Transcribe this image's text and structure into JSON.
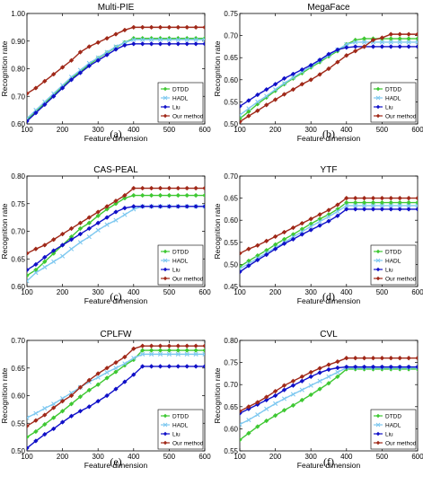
{
  "figure": {
    "captions": [
      "(a)",
      "(b)",
      "(c)",
      "(d)",
      "(e)",
      "(f)"
    ]
  },
  "colors": {
    "DTDD": "#3ec832",
    "HADL": "#7ec8f0",
    "Liu": "#1010c8",
    "Our method": "#a02818"
  },
  "chart_data": [
    {
      "type": "line",
      "title": "Multi-PIE",
      "xlabel": "Feature dimension",
      "ylabel": "Recognition rate",
      "xlim": [
        100,
        600
      ],
      "ylim": [
        0.6,
        1.0
      ],
      "xticks": [
        100,
        200,
        300,
        400,
        500,
        600
      ],
      "yticks": [
        0.6,
        0.7,
        0.8,
        0.9,
        1.0
      ],
      "ytick_labels": [
        "0.60",
        "0.70",
        "0.80",
        "0.90",
        "1.00"
      ],
      "grid": false,
      "legend": "bottom-right",
      "x": [
        100,
        125,
        150,
        175,
        200,
        225,
        250,
        275,
        300,
        325,
        350,
        375,
        400,
        425,
        450,
        475,
        500,
        525,
        550,
        575,
        600
      ],
      "series": [
        {
          "name": "DTDD",
          "values": [
            0.615,
            0.645,
            0.675,
            0.705,
            0.735,
            0.765,
            0.79,
            0.815,
            0.838,
            0.858,
            0.878,
            0.895,
            0.91,
            0.91,
            0.91,
            0.91,
            0.91,
            0.91,
            0.91,
            0.91,
            0.91
          ]
        },
        {
          "name": "HADL",
          "values": [
            0.62,
            0.65,
            0.68,
            0.71,
            0.74,
            0.77,
            0.795,
            0.82,
            0.84,
            0.86,
            0.88,
            0.895,
            0.905,
            0.905,
            0.905,
            0.905,
            0.905,
            0.905,
            0.905,
            0.905,
            0.905
          ]
        },
        {
          "name": "Liu",
          "values": [
            0.61,
            0.64,
            0.67,
            0.7,
            0.73,
            0.76,
            0.785,
            0.81,
            0.83,
            0.85,
            0.87,
            0.885,
            0.89,
            0.89,
            0.89,
            0.89,
            0.89,
            0.89,
            0.89,
            0.89,
            0.89
          ]
        },
        {
          "name": "Our method",
          "values": [
            0.71,
            0.73,
            0.755,
            0.78,
            0.805,
            0.83,
            0.86,
            0.88,
            0.895,
            0.91,
            0.925,
            0.94,
            0.95,
            0.95,
            0.95,
            0.95,
            0.95,
            0.95,
            0.95,
            0.95,
            0.95
          ]
        }
      ]
    },
    {
      "type": "line",
      "title": "MegaFace",
      "xlabel": "Feature dimension",
      "ylabel": "Recognition rate",
      "xlim": [
        100,
        600
      ],
      "ylim": [
        0.5,
        0.75
      ],
      "xticks": [
        100,
        200,
        300,
        400,
        500,
        600
      ],
      "yticks": [
        0.5,
        0.55,
        0.6,
        0.65,
        0.7,
        0.75
      ],
      "ytick_labels": [
        "0.50",
        "0.55",
        "0.60",
        "0.65",
        "0.70",
        "0.75"
      ],
      "grid": false,
      "legend": "bottom-right",
      "x": [
        100,
        125,
        150,
        175,
        200,
        225,
        250,
        275,
        300,
        325,
        350,
        375,
        400,
        425,
        450,
        475,
        500,
        525,
        550,
        575,
        600
      ],
      "series": [
        {
          "name": "DTDD",
          "values": [
            0.512,
            0.528,
            0.545,
            0.56,
            0.575,
            0.59,
            0.603,
            0.615,
            0.628,
            0.64,
            0.653,
            0.665,
            0.68,
            0.69,
            0.693,
            0.693,
            0.693,
            0.693,
            0.693,
            0.693,
            0.693
          ]
        },
        {
          "name": "HADL",
          "values": [
            0.52,
            0.535,
            0.55,
            0.563,
            0.578,
            0.592,
            0.605,
            0.618,
            0.63,
            0.643,
            0.655,
            0.668,
            0.68,
            0.685,
            0.685,
            0.685,
            0.685,
            0.685,
            0.685,
            0.685,
            0.685
          ]
        },
        {
          "name": "Liu",
          "values": [
            0.54,
            0.553,
            0.566,
            0.578,
            0.59,
            0.603,
            0.613,
            0.623,
            0.633,
            0.645,
            0.658,
            0.668,
            0.673,
            0.675,
            0.675,
            0.675,
            0.675,
            0.675,
            0.675,
            0.675,
            0.675
          ]
        },
        {
          "name": "Our method",
          "values": [
            0.505,
            0.518,
            0.53,
            0.543,
            0.555,
            0.567,
            0.578,
            0.59,
            0.6,
            0.612,
            0.625,
            0.64,
            0.655,
            0.665,
            0.675,
            0.69,
            0.695,
            0.703,
            0.703,
            0.703,
            0.703
          ]
        }
      ]
    },
    {
      "type": "line",
      "title": "CAS-PEAL",
      "xlabel": "Feature dimension",
      "ylabel": "Recognition rate",
      "xlim": [
        100,
        600
      ],
      "ylim": [
        0.6,
        0.8
      ],
      "xticks": [
        100,
        200,
        300,
        400,
        500,
        600
      ],
      "yticks": [
        0.6,
        0.65,
        0.7,
        0.75,
        0.8
      ],
      "ytick_labels": [
        "0.60",
        "0.65",
        "0.70",
        "0.75",
        "0.80"
      ],
      "grid": false,
      "legend": "bottom-right",
      "x": [
        100,
        125,
        150,
        175,
        200,
        225,
        250,
        275,
        300,
        325,
        350,
        375,
        400,
        425,
        450,
        475,
        500,
        525,
        550,
        575,
        600
      ],
      "series": [
        {
          "name": "DTDD",
          "values": [
            0.62,
            0.63,
            0.645,
            0.66,
            0.675,
            0.69,
            0.705,
            0.715,
            0.728,
            0.74,
            0.75,
            0.76,
            0.765,
            0.765,
            0.765,
            0.765,
            0.765,
            0.765,
            0.765,
            0.765,
            0.765
          ]
        },
        {
          "name": "HADL",
          "values": [
            0.61,
            0.625,
            0.635,
            0.645,
            0.655,
            0.668,
            0.68,
            0.69,
            0.702,
            0.712,
            0.72,
            0.73,
            0.74,
            0.745,
            0.745,
            0.745,
            0.745,
            0.745,
            0.745,
            0.745,
            0.745
          ]
        },
        {
          "name": "Liu",
          "values": [
            0.63,
            0.64,
            0.653,
            0.665,
            0.675,
            0.685,
            0.695,
            0.705,
            0.715,
            0.725,
            0.735,
            0.742,
            0.745,
            0.745,
            0.745,
            0.745,
            0.745,
            0.745,
            0.745,
            0.745,
            0.745
          ]
        },
        {
          "name": "Our method",
          "values": [
            0.66,
            0.668,
            0.675,
            0.685,
            0.695,
            0.705,
            0.715,
            0.725,
            0.735,
            0.745,
            0.755,
            0.765,
            0.778,
            0.778,
            0.778,
            0.778,
            0.778,
            0.778,
            0.778,
            0.778,
            0.778
          ]
        }
      ]
    },
    {
      "type": "line",
      "title": "YTF",
      "xlabel": "Feature dimension",
      "ylabel": "Recognition rate",
      "xlim": [
        100,
        600
      ],
      "ylim": [
        0.45,
        0.7
      ],
      "xticks": [
        100,
        200,
        300,
        400,
        500,
        600
      ],
      "yticks": [
        0.45,
        0.5,
        0.55,
        0.6,
        0.65,
        0.7
      ],
      "ytick_labels": [
        "0.45",
        "0.50",
        "0.55",
        "0.60",
        "0.65",
        "0.70"
      ],
      "grid": false,
      "legend": "bottom-right",
      "x": [
        100,
        125,
        150,
        175,
        200,
        225,
        250,
        275,
        300,
        325,
        350,
        375,
        400,
        425,
        450,
        475,
        500,
        525,
        550,
        575,
        600
      ],
      "series": [
        {
          "name": "DTDD",
          "values": [
            0.495,
            0.508,
            0.52,
            0.532,
            0.545,
            0.557,
            0.568,
            0.58,
            0.592,
            0.603,
            0.613,
            0.625,
            0.64,
            0.64,
            0.64,
            0.64,
            0.64,
            0.64,
            0.64,
            0.64,
            0.64
          ]
        },
        {
          "name": "HADL",
          "values": [
            0.49,
            0.502,
            0.514,
            0.526,
            0.538,
            0.55,
            0.562,
            0.574,
            0.586,
            0.597,
            0.608,
            0.62,
            0.633,
            0.633,
            0.633,
            0.633,
            0.633,
            0.633,
            0.633,
            0.633,
            0.633
          ]
        },
        {
          "name": "Liu",
          "values": [
            0.483,
            0.497,
            0.51,
            0.522,
            0.535,
            0.547,
            0.557,
            0.568,
            0.578,
            0.588,
            0.598,
            0.61,
            0.625,
            0.625,
            0.625,
            0.625,
            0.625,
            0.625,
            0.625,
            0.625,
            0.625
          ]
        },
        {
          "name": "Our method",
          "values": [
            0.525,
            0.535,
            0.543,
            0.553,
            0.563,
            0.573,
            0.583,
            0.593,
            0.603,
            0.613,
            0.623,
            0.635,
            0.65,
            0.65,
            0.65,
            0.65,
            0.65,
            0.65,
            0.65,
            0.65,
            0.65
          ]
        }
      ]
    },
    {
      "type": "line",
      "title": "CPLFW",
      "xlabel": "Feature dimension",
      "ylabel": "Recognition rate",
      "xlim": [
        100,
        600
      ],
      "ylim": [
        0.5,
        0.7
      ],
      "xticks": [
        100,
        200,
        300,
        400,
        500,
        600
      ],
      "yticks": [
        0.5,
        0.55,
        0.6,
        0.65,
        0.7
      ],
      "ytick_labels": [
        "0.50",
        "0.55",
        "0.60",
        "0.65",
        "0.70"
      ],
      "grid": false,
      "legend": "bottom-right",
      "x": [
        100,
        125,
        150,
        175,
        200,
        225,
        250,
        275,
        300,
        325,
        350,
        375,
        400,
        425,
        450,
        475,
        500,
        525,
        550,
        575,
        600
      ],
      "series": [
        {
          "name": "DTDD",
          "values": [
            0.525,
            0.535,
            0.548,
            0.56,
            0.572,
            0.585,
            0.598,
            0.61,
            0.62,
            0.632,
            0.643,
            0.655,
            0.665,
            0.682,
            0.682,
            0.682,
            0.682,
            0.682,
            0.682,
            0.682,
            0.682
          ]
        },
        {
          "name": "HADL",
          "values": [
            0.56,
            0.568,
            0.577,
            0.585,
            0.595,
            0.605,
            0.615,
            0.625,
            0.633,
            0.642,
            0.65,
            0.658,
            0.668,
            0.675,
            0.675,
            0.675,
            0.675,
            0.675,
            0.675,
            0.675,
            0.675
          ]
        },
        {
          "name": "Liu",
          "values": [
            0.505,
            0.518,
            0.53,
            0.54,
            0.552,
            0.563,
            0.572,
            0.58,
            0.59,
            0.6,
            0.612,
            0.625,
            0.638,
            0.653,
            0.653,
            0.653,
            0.653,
            0.653,
            0.653,
            0.653,
            0.653
          ]
        },
        {
          "name": "Our method",
          "values": [
            0.545,
            0.555,
            0.565,
            0.578,
            0.59,
            0.6,
            0.615,
            0.628,
            0.64,
            0.65,
            0.66,
            0.67,
            0.685,
            0.69,
            0.69,
            0.69,
            0.69,
            0.69,
            0.69,
            0.69,
            0.69
          ]
        }
      ]
    },
    {
      "type": "line",
      "title": "CVL",
      "xlabel": "Feature dimension",
      "ylabel": "Recognition rate",
      "xlim": [
        100,
        600
      ],
      "ylim": [
        0.55,
        0.8
      ],
      "xticks": [
        100,
        200,
        300,
        400,
        500,
        600
      ],
      "yticks": [
        0.55,
        0.6,
        0.65,
        0.7,
        0.75,
        0.8
      ],
      "ytick_labels": [
        "0.55",
        "0.60",
        "0.65",
        "0.70",
        "0.75",
        "0.80"
      ],
      "grid": false,
      "legend": "bottom-right",
      "x": [
        100,
        125,
        150,
        175,
        200,
        225,
        250,
        275,
        300,
        325,
        350,
        375,
        400,
        425,
        450,
        475,
        500,
        525,
        550,
        575,
        600
      ],
      "series": [
        {
          "name": "DTDD",
          "values": [
            0.575,
            0.59,
            0.605,
            0.618,
            0.63,
            0.642,
            0.653,
            0.665,
            0.677,
            0.69,
            0.703,
            0.718,
            0.735,
            0.735,
            0.735,
            0.735,
            0.735,
            0.735,
            0.735,
            0.735,
            0.735
          ]
        },
        {
          "name": "HADL",
          "values": [
            0.61,
            0.62,
            0.632,
            0.645,
            0.657,
            0.668,
            0.678,
            0.688,
            0.698,
            0.708,
            0.718,
            0.728,
            0.738,
            0.738,
            0.738,
            0.738,
            0.738,
            0.738,
            0.738,
            0.738,
            0.738
          ]
        },
        {
          "name": "Liu",
          "values": [
            0.635,
            0.645,
            0.655,
            0.665,
            0.675,
            0.688,
            0.698,
            0.708,
            0.718,
            0.727,
            0.734,
            0.738,
            0.74,
            0.74,
            0.74,
            0.74,
            0.74,
            0.74,
            0.74,
            0.74,
            0.74
          ]
        },
        {
          "name": "Our method",
          "values": [
            0.64,
            0.65,
            0.66,
            0.672,
            0.685,
            0.698,
            0.708,
            0.718,
            0.728,
            0.737,
            0.745,
            0.752,
            0.76,
            0.76,
            0.76,
            0.76,
            0.76,
            0.76,
            0.76,
            0.76,
            0.76
          ]
        }
      ]
    }
  ]
}
